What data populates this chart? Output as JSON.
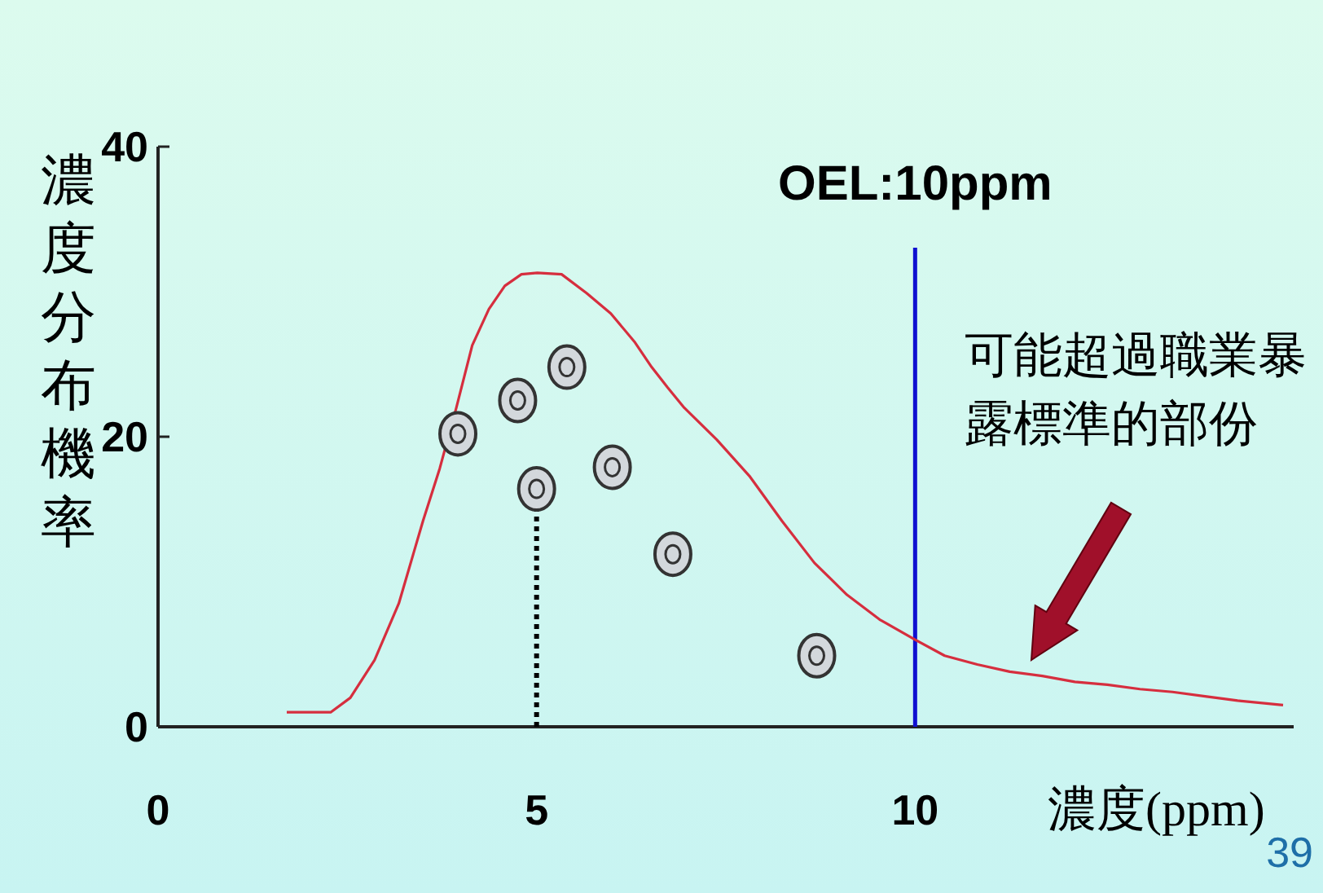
{
  "chart_data": {
    "type": "line",
    "xlabel": "濃度(ppm)",
    "ylabel": "濃度分布機率",
    "xlim": [
      0,
      15
    ],
    "xticks": [
      0,
      5,
      10
    ],
    "ylim": [
      0,
      40
    ],
    "yticks": [
      0,
      20,
      40
    ],
    "grid": false,
    "series": [
      {
        "type": "line",
        "color": "#d62e3e",
        "line_style": "solid",
        "x": [
          1.7,
          2.28,
          2.54,
          2.86,
          3.18,
          3.5,
          3.72,
          3.94,
          4.15,
          4.37,
          4.58,
          4.8,
          5.01,
          5.33,
          5.66,
          5.98,
          6.3,
          6.52,
          6.73,
          6.95,
          7.38,
          7.81,
          8.24,
          8.67,
          9.1,
          9.53,
          10.0,
          10.39,
          10.82,
          11.25,
          11.68,
          12.11,
          12.54,
          12.97,
          13.4,
          13.83,
          14.26,
          14.86
        ],
        "values": [
          1.0,
          1.0,
          2.0,
          4.6,
          8.5,
          14.2,
          17.8,
          22.0,
          26.3,
          28.8,
          30.4,
          31.2,
          31.3,
          31.2,
          29.9,
          28.5,
          26.5,
          24.8,
          23.4,
          22.0,
          19.8,
          17.3,
          14.2,
          11.3,
          9.1,
          7.4,
          6.0,
          4.9,
          4.3,
          3.8,
          3.5,
          3.1,
          2.9,
          2.6,
          2.4,
          2.1,
          1.8,
          1.5
        ]
      },
      {
        "type": "line",
        "color": "#000000",
        "line_style": "dotted",
        "x": [
          5,
          5
        ],
        "values": [
          0,
          16.4
        ]
      },
      {
        "type": "scatter",
        "color": "#d3d8dc",
        "marker": "circle",
        "x": [
          3.96,
          4.75,
          5.4,
          5,
          6.0,
          6.8,
          8.7
        ],
        "values": [
          20.2,
          22.5,
          24.8,
          16.4,
          17.9,
          11.9,
          4.9
        ]
      }
    ],
    "ref_lines": [
      {
        "axis": "x",
        "value": 10,
        "label": "OEL:10ppm",
        "color": "#1010d0"
      }
    ],
    "annotations": [
      "可能超過職業暴露標準的部份",
      "39"
    ]
  }
}
